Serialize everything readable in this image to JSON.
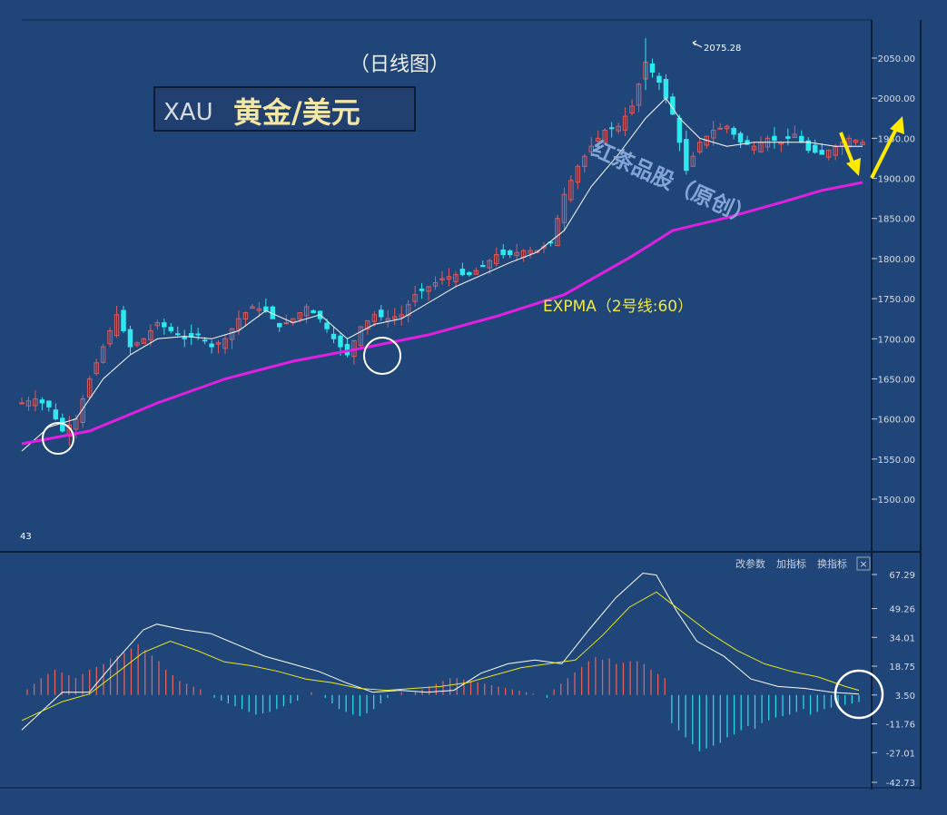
{
  "chart_data": [
    {
      "type": "candlestick",
      "title": "（日线图）",
      "symbol": "XAU",
      "name": "黄金/美元",
      "watermark": "红茶品股（原创）",
      "ma_label": "EXPMA（2号线:60）",
      "peak_label": "2075.28",
      "left_edge_label": "43",
      "ylim": [
        1450,
        2100
      ],
      "y_ticks": [
        "2050.00",
        "2000.00",
        "1950.00",
        "1900.00",
        "1850.00",
        "1800.00",
        "1750.00",
        "1700.00",
        "1650.00",
        "1600.00",
        "1550.00",
        "1500.00"
      ],
      "y_tick_values": [
        2050,
        2000,
        1950,
        1900,
        1850,
        1800,
        1750,
        1700,
        1650,
        1600,
        1550,
        1500
      ],
      "close_path": [
        [
          0,
          1620
        ],
        [
          2,
          1625
        ],
        [
          4,
          1615
        ],
        [
          6,
          1585
        ],
        [
          8,
          1600
        ],
        [
          10,
          1650
        ],
        [
          12,
          1690
        ],
        [
          14,
          1730
        ],
        [
          16,
          1690
        ],
        [
          18,
          1700
        ],
        [
          20,
          1720
        ],
        [
          22,
          1710
        ],
        [
          24,
          1700
        ],
        [
          26,
          1705
        ],
        [
          28,
          1690
        ],
        [
          30,
          1700
        ],
        [
          32,
          1725
        ],
        [
          34,
          1740
        ],
        [
          36,
          1735
        ],
        [
          38,
          1715
        ],
        [
          40,
          1725
        ],
        [
          42,
          1740
        ],
        [
          44,
          1725
        ],
        [
          46,
          1700
        ],
        [
          48,
          1680
        ],
        [
          50,
          1715
        ],
        [
          52,
          1730
        ],
        [
          54,
          1725
        ],
        [
          56,
          1730
        ],
        [
          58,
          1755
        ],
        [
          60,
          1765
        ],
        [
          62,
          1775
        ],
        [
          64,
          1780
        ],
        [
          66,
          1780
        ],
        [
          68,
          1790
        ],
        [
          70,
          1805
        ],
        [
          72,
          1805
        ],
        [
          74,
          1810
        ],
        [
          76,
          1810
        ],
        [
          78,
          1820
        ],
        [
          80,
          1880
        ],
        [
          82,
          1915
        ],
        [
          84,
          1940
        ],
        [
          86,
          1960
        ],
        [
          88,
          1965
        ],
        [
          90,
          1990
        ],
        [
          92,
          2045
        ],
        [
          94,
          2020
        ],
        [
          96,
          1980
        ],
        [
          98,
          1910
        ],
        [
          100,
          1945
        ],
        [
          102,
          1960
        ],
        [
          104,
          1965
        ],
        [
          106,
          1945
        ],
        [
          108,
          1940
        ],
        [
          110,
          1950
        ],
        [
          112,
          1945
        ],
        [
          114,
          1955
        ],
        [
          116,
          1935
        ],
        [
          118,
          1930
        ],
        [
          120,
          1940
        ],
        [
          122,
          1950
        ],
        [
          124,
          1945
        ]
      ],
      "ema_fast": [
        [
          0,
          1560
        ],
        [
          4,
          1590
        ],
        [
          8,
          1600
        ],
        [
          12,
          1650
        ],
        [
          16,
          1680
        ],
        [
          20,
          1700
        ],
        [
          24,
          1703
        ],
        [
          28,
          1700
        ],
        [
          32,
          1710
        ],
        [
          36,
          1735
        ],
        [
          40,
          1720
        ],
        [
          44,
          1730
        ],
        [
          48,
          1700
        ],
        [
          52,
          1718
        ],
        [
          56,
          1725
        ],
        [
          60,
          1745
        ],
        [
          64,
          1765
        ],
        [
          68,
          1780
        ],
        [
          72,
          1795
        ],
        [
          76,
          1808
        ],
        [
          80,
          1835
        ],
        [
          84,
          1890
        ],
        [
          88,
          1930
        ],
        [
          92,
          1975
        ],
        [
          95,
          2000
        ],
        [
          97,
          1975
        ],
        [
          100,
          1950
        ],
        [
          104,
          1940
        ],
        [
          108,
          1945
        ],
        [
          112,
          1945
        ],
        [
          116,
          1945
        ],
        [
          120,
          1940
        ],
        [
          124,
          1940
        ]
      ],
      "expma60": [
        [
          0,
          1569
        ],
        [
          10,
          1585
        ],
        [
          20,
          1620
        ],
        [
          30,
          1650
        ],
        [
          40,
          1672
        ],
        [
          50,
          1688
        ],
        [
          60,
          1705
        ],
        [
          70,
          1728
        ],
        [
          80,
          1755
        ],
        [
          90,
          1803
        ],
        [
          96,
          1835
        ],
        [
          104,
          1851
        ],
        [
          112,
          1870
        ],
        [
          118,
          1885
        ],
        [
          124,
          1895
        ]
      ]
    },
    {
      "type": "macd",
      "ylim": [
        -42.73,
        75
      ],
      "y_ticks": [
        "67.29",
        "49.26",
        "34.01",
        "18.75",
        "3.50",
        "-11.76",
        "-27.01",
        "-42.73"
      ],
      "y_tick_values": [
        67.29,
        49.26,
        34.01,
        18.75,
        3.5,
        -11.76,
        -27.01,
        -42.73
      ],
      "hist": [
        4,
        8,
        12,
        15,
        18,
        16,
        14,
        12,
        15,
        18,
        20,
        22,
        26,
        28,
        30,
        33,
        36,
        32,
        28,
        24,
        18,
        14,
        10,
        8,
        6,
        4,
        0,
        -2,
        -4,
        -6,
        -8,
        -10,
        -12,
        -14,
        -13,
        -12,
        -10,
        -8,
        -6,
        -4,
        0,
        2,
        0,
        -2,
        -6,
        -10,
        -12,
        -14,
        -15,
        -13,
        -10,
        -6,
        -2,
        0,
        2,
        0,
        2,
        4,
        6,
        8,
        10,
        12,
        12,
        11,
        10,
        9,
        8,
        7,
        6,
        5,
        4,
        3,
        2,
        1,
        0,
        -2,
        4,
        8,
        12,
        16,
        20,
        24,
        27,
        25,
        26,
        22,
        23,
        24,
        24,
        22,
        18,
        15,
        12,
        -20,
        -25,
        -30,
        -35,
        -40,
        -38,
        -36,
        -34,
        -30,
        -28,
        -25,
        -22,
        -24,
        -20,
        -18,
        -16,
        -15,
        -14,
        -12,
        -10,
        -14,
        -12,
        -10,
        -9,
        -8,
        -7,
        -6,
        -5
      ],
      "dif": [
        [
          0,
          -15
        ],
        [
          6,
          5
        ],
        [
          10,
          5
        ],
        [
          14,
          22
        ],
        [
          18,
          38
        ],
        [
          20,
          41
        ],
        [
          24,
          38
        ],
        [
          28,
          36
        ],
        [
          32,
          30
        ],
        [
          36,
          24
        ],
        [
          40,
          20
        ],
        [
          44,
          16
        ],
        [
          48,
          10
        ],
        [
          52,
          5
        ],
        [
          56,
          6
        ],
        [
          60,
          5
        ],
        [
          64,
          6
        ],
        [
          68,
          15
        ],
        [
          72,
          20
        ],
        [
          76,
          22
        ],
        [
          80,
          20
        ],
        [
          84,
          38
        ],
        [
          88,
          55
        ],
        [
          92,
          68
        ],
        [
          94,
          67
        ],
        [
          97,
          48
        ],
        [
          100,
          32
        ],
        [
          104,
          24
        ],
        [
          108,
          12
        ],
        [
          112,
          8
        ],
        [
          116,
          7
        ],
        [
          120,
          5
        ],
        [
          124,
          4
        ]
      ],
      "dea": [
        [
          0,
          -10
        ],
        [
          6,
          0
        ],
        [
          10,
          4
        ],
        [
          14,
          15
        ],
        [
          18,
          26
        ],
        [
          22,
          32
        ],
        [
          26,
          27
        ],
        [
          30,
          21
        ],
        [
          34,
          19
        ],
        [
          38,
          16
        ],
        [
          42,
          12
        ],
        [
          46,
          10
        ],
        [
          50,
          7
        ],
        [
          54,
          6
        ],
        [
          58,
          7
        ],
        [
          62,
          8
        ],
        [
          66,
          10
        ],
        [
          70,
          14
        ],
        [
          74,
          18
        ],
        [
          78,
          20
        ],
        [
          82,
          22
        ],
        [
          86,
          35
        ],
        [
          90,
          50
        ],
        [
          94,
          58
        ],
        [
          98,
          47
        ],
        [
          102,
          36
        ],
        [
          106,
          27
        ],
        [
          110,
          20
        ],
        [
          114,
          16
        ],
        [
          118,
          13
        ],
        [
          122,
          8
        ],
        [
          124,
          6
        ]
      ],
      "buttons": [
        "改参数",
        "加指标",
        "换指标",
        "×"
      ]
    }
  ],
  "colors": {
    "background": "#1f4579",
    "up_candle": "#e05a5a",
    "down_candle": "#2ee8f0",
    "ema_fast": "#ffffff",
    "expma": "#e020e0",
    "hist_pos": "#e0605a",
    "hist_neg": "#2ad6ea",
    "dea": "#e8e820",
    "arrow": "#ffea00",
    "circle": "#ffffff"
  }
}
